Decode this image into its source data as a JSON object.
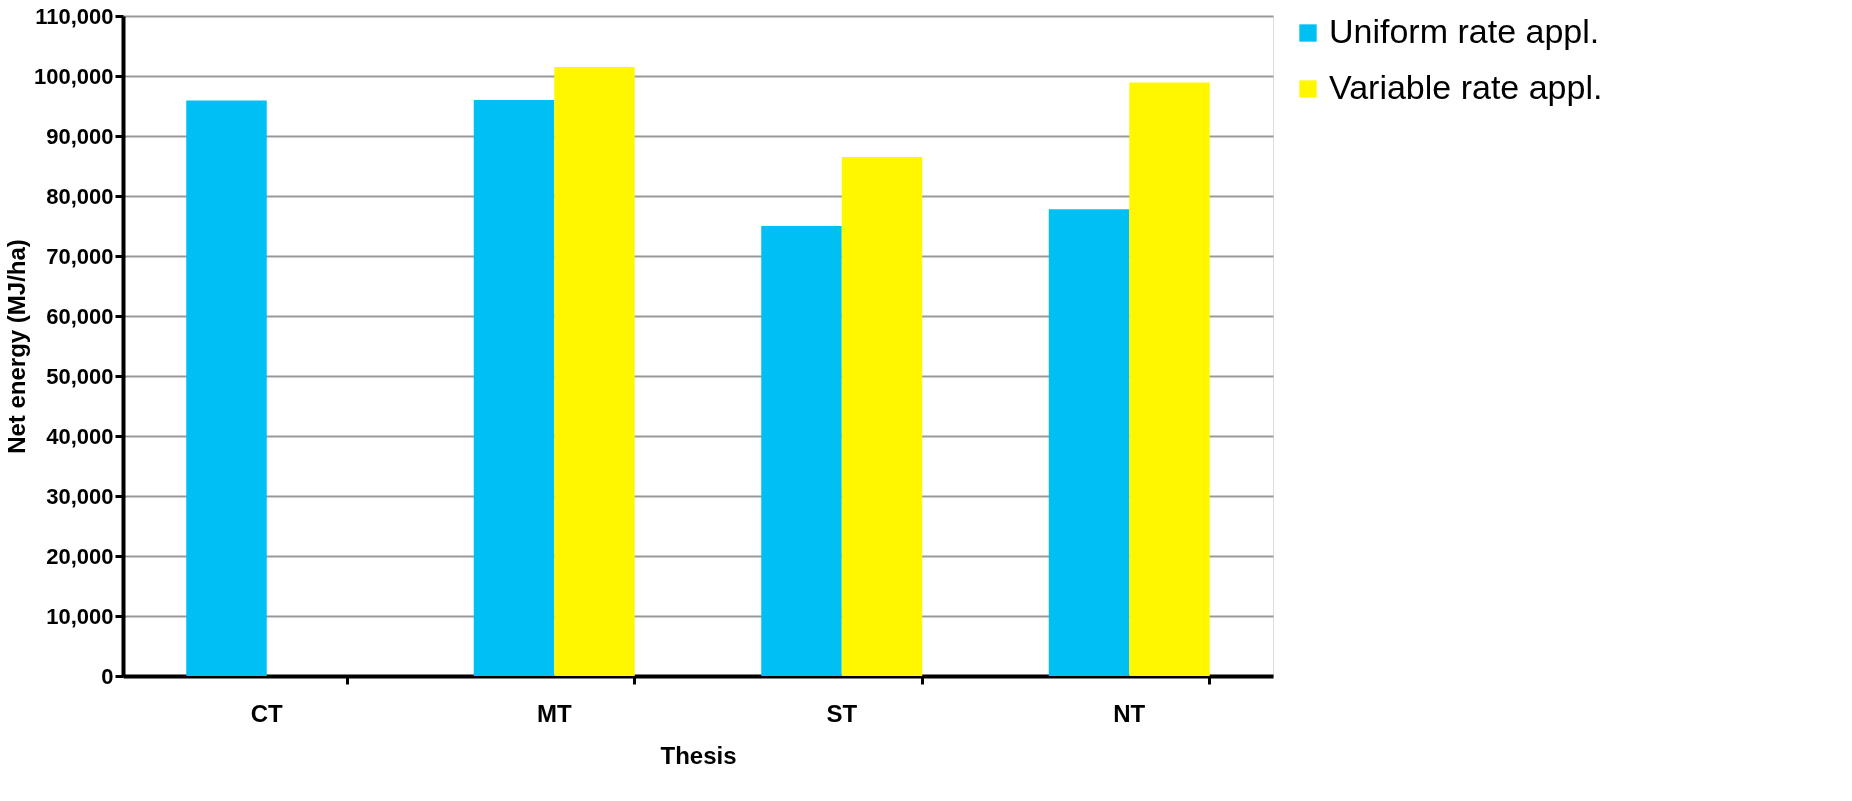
{
  "chart_data": {
    "type": "bar",
    "xlabel": "Thesis",
    "ylabel": "Net energy (MJ/ha)",
    "categories": [
      "CT",
      "MT",
      "ST",
      "NT"
    ],
    "series": [
      {
        "name": "Uniform rate appl.",
        "color": "#00bff3",
        "values": [
          95900,
          96000,
          75000,
          77800
        ]
      },
      {
        "name": "Variable rate appl.",
        "color": "#fff700",
        "values": [
          null,
          101500,
          86500,
          98900
        ]
      }
    ],
    "ylim": [
      0,
      110000
    ],
    "yticks": [
      {
        "value": 0,
        "label": "0"
      },
      {
        "value": 10000,
        "label": "10,000"
      },
      {
        "value": 20000,
        "label": "20,000"
      },
      {
        "value": 30000,
        "label": "30,000"
      },
      {
        "value": 40000,
        "label": "40,000"
      },
      {
        "value": 50000,
        "label": "50,000"
      },
      {
        "value": 60000,
        "label": "60,000"
      },
      {
        "value": 70000,
        "label": "70,000"
      },
      {
        "value": 80000,
        "label": "80,000"
      },
      {
        "value": 90000,
        "label": "90,000"
      },
      {
        "value": 100000,
        "label": "100,000"
      },
      {
        "value": 110000,
        "label": "110,000"
      }
    ],
    "grid": "y",
    "legend": "right"
  }
}
